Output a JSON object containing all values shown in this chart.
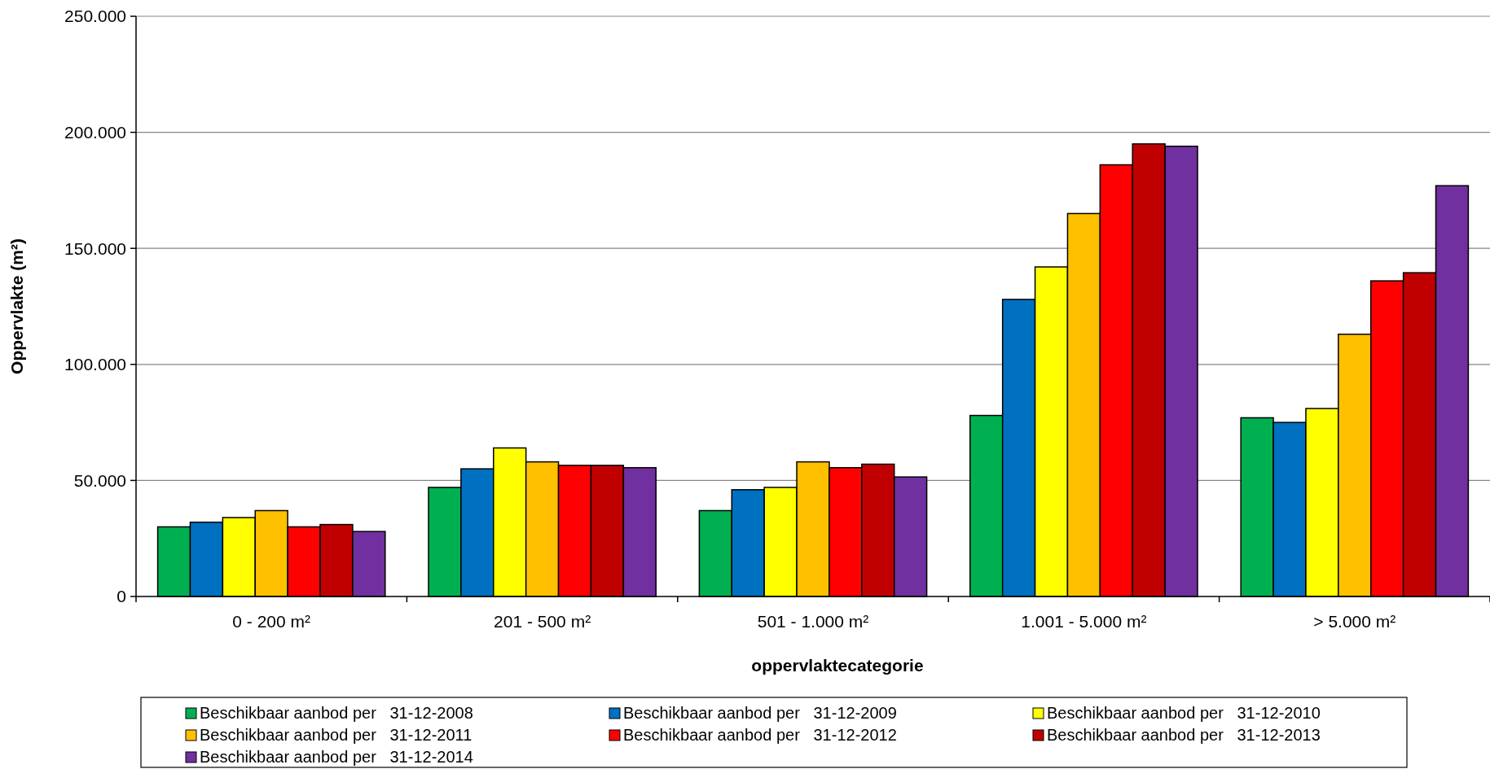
{
  "chart_data": {
    "type": "bar",
    "xlabel": "oppervlaktecategorie",
    "ylabel": "Oppervlakte (m²)",
    "categories": [
      "0 - 200 m²",
      "201 - 500 m²",
      "501 - 1.000 m²",
      "1.001 - 5.000 m²",
      "> 5.000 m²"
    ],
    "series": [
      {
        "name": "Beschikbaar aanbod per   31-12-2008",
        "color": "#00b050",
        "values": [
          30000,
          47000,
          37000,
          78000,
          77000
        ]
      },
      {
        "name": "Beschikbaar aanbod per   31-12-2009",
        "color": "#0070c0",
        "values": [
          32000,
          55000,
          46000,
          128000,
          75000
        ]
      },
      {
        "name": "Beschikbaar aanbod per   31-12-2010",
        "color": "#ffff00",
        "values": [
          34000,
          64000,
          47000,
          142000,
          81000
        ]
      },
      {
        "name": "Beschikbaar aanbod per   31-12-2011",
        "color": "#ffc000",
        "values": [
          37000,
          58000,
          58000,
          165000,
          113000
        ]
      },
      {
        "name": "Beschikbaar aanbod per   31-12-2012",
        "color": "#ff0000",
        "values": [
          30000,
          56500,
          55500,
          186000,
          136000
        ]
      },
      {
        "name": "Beschikbaar aanbod per   31-12-2013",
        "color": "#c00000",
        "values": [
          31000,
          56500,
          57000,
          195000,
          139500
        ]
      },
      {
        "name": "Beschikbaar aanbod per   31-12-2014",
        "color": "#7030a0",
        "values": [
          28000,
          55500,
          51500,
          194000,
          177000
        ]
      }
    ],
    "ylim": [
      0,
      250000
    ],
    "yticks": [
      {
        "value": 0,
        "label": "0"
      },
      {
        "value": 50000,
        "label": "50.000"
      },
      {
        "value": 100000,
        "label": "100.000"
      },
      {
        "value": 150000,
        "label": "150.000"
      },
      {
        "value": 200000,
        "label": "200.000"
      },
      {
        "value": 250000,
        "label": "250.000"
      }
    ],
    "grid": "y",
    "legend": "bottom"
  }
}
